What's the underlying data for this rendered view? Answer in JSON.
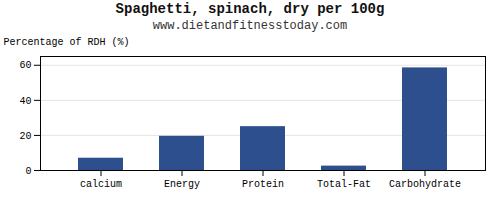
{
  "chart_data": {
    "type": "bar",
    "title": "Spaghetti, spinach, dry per 100g",
    "subtitle": "www.dietandfitnesstoday.com",
    "categories": [
      "calcium",
      "Energy",
      "Protein",
      "Total-Fat",
      "Carbohydrate"
    ],
    "values": [
      7,
      19.5,
      25,
      2.5,
      58.5
    ],
    "color": "#2d4f8e",
    "ylabel": "Percentage of RDH (%)",
    "ylim": [
      0,
      65
    ],
    "yticks": [
      0,
      20,
      40,
      60
    ],
    "grid": true
  }
}
